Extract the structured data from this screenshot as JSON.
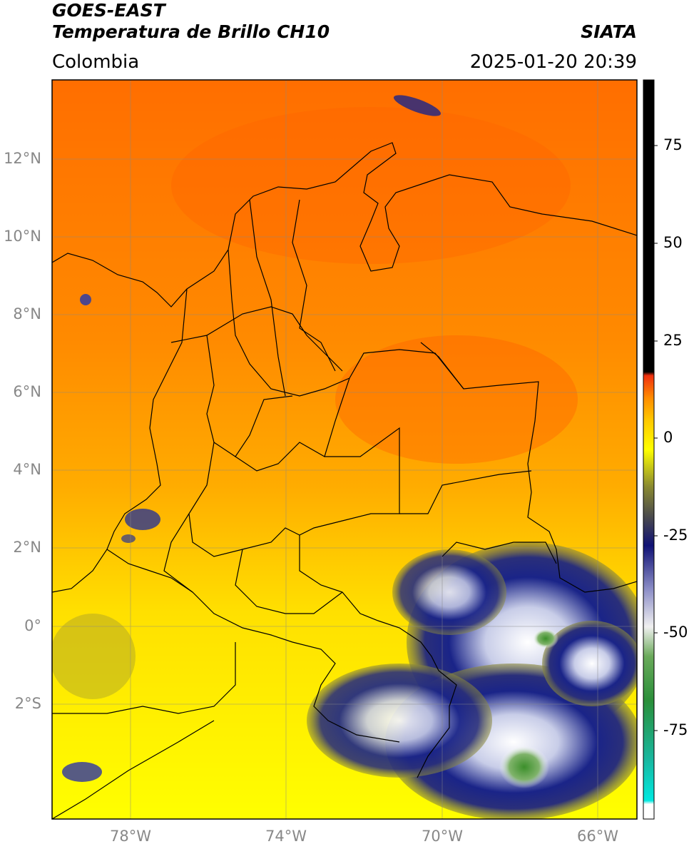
{
  "header": {
    "satellite": "GOES-EAST",
    "product": "Temperatura de Brillo CH10",
    "region": "Colombia",
    "source": "SIATA",
    "datetime": "2025-01-20 20:39"
  },
  "axes": {
    "lat_labels": [
      "12°N",
      "10°N",
      "8°N",
      "6°N",
      "4°N",
      "2°N",
      "0°",
      "2°S"
    ],
    "lon_labels": [
      "78°W",
      "74°W",
      "70°W",
      "66°W"
    ]
  },
  "colorbar": {
    "tick_labels": [
      "75",
      "50",
      "25",
      "0",
      "-25",
      "-50",
      "-75"
    ],
    "colors": {
      "black": "#000000",
      "red": "#e8230f",
      "orange": "#ff8c00",
      "yellow": "#ffff00",
      "olive": "#7d7d2b",
      "navy": "#101275",
      "white": "#f2f2f2",
      "green": "#3c8f2b",
      "cyan": "#00e0d8"
    }
  },
  "map": {
    "background_colors": {
      "north": "#ff6a00",
      "central": "#ff9d00",
      "south": "#ffd400",
      "far_south": "#ffff00",
      "cloud_dark": "#0f1a7a",
      "cloud_light": "#f0f0ff",
      "cloud_olive": "#8c8a3a",
      "cloud_green": "#4f9a3c"
    }
  }
}
